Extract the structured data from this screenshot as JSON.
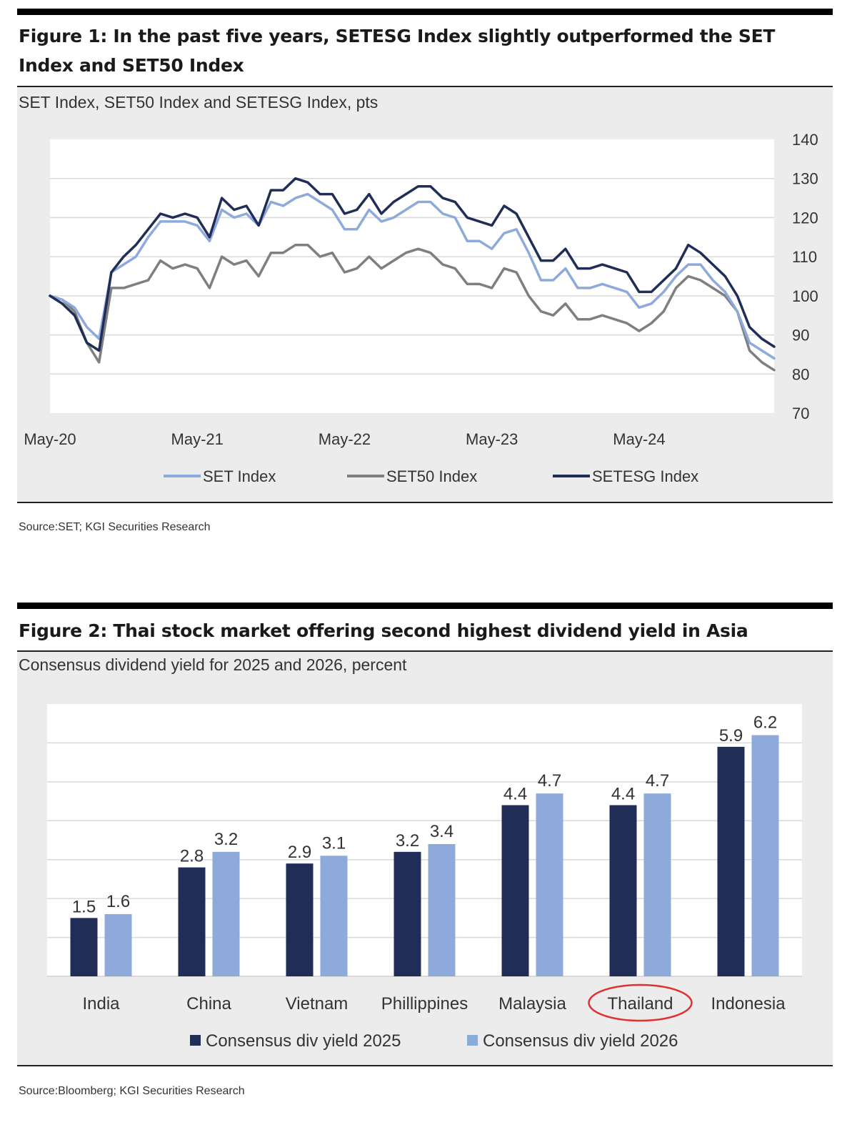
{
  "figure1": {
    "title": "Figure 1: In the past five years, SETESG Index slightly outperformed the SET Index and SET50 Index",
    "subtitle": "SET Index, SET50 Index and SETESG Index, pts",
    "source": "Source:SET; KGI Securities Research"
  },
  "figure2": {
    "title": "Figure 2: Thai stock market offering second highest dividend yield in Asia",
    "subtitle": "Consensus dividend yield for 2025 and 2026, percent",
    "source": "Source:Bloomberg; KGI Securities Research"
  },
  "colors": {
    "set": "#8eaadb",
    "set50": "#7f7f7f",
    "setesg": "#1f2d57",
    "bar2025": "#1f2d57",
    "bar2026": "#8eaadb",
    "highlight": "#e03030"
  },
  "chart_data": [
    {
      "type": "line",
      "title": "SET Index, SET50 Index and SETESG Index, pts",
      "x_tick_labels": [
        "May-20",
        "May-21",
        "May-22",
        "May-23",
        "May-24"
      ],
      "y_ticks": [
        70,
        80,
        90,
        100,
        110,
        120,
        130,
        140
      ],
      "ylim": [
        70,
        140
      ],
      "y_axis_side": "right",
      "grid": true,
      "legend_position": "bottom",
      "x_index_count": 60,
      "series": [
        {
          "name": "SET Index",
          "color": "#8eaadb",
          "values": [
            100,
            99,
            97,
            92,
            89,
            106,
            108,
            110,
            115,
            119,
            119,
            119,
            118,
            114,
            122,
            120,
            121,
            118,
            124,
            123,
            125,
            126,
            124,
            122,
            117,
            117,
            122,
            119,
            120,
            122,
            124,
            124,
            121,
            120,
            114,
            114,
            112,
            116,
            117,
            111,
            104,
            104,
            107,
            102,
            102,
            103,
            102,
            101,
            97,
            98,
            101,
            105,
            108,
            108,
            104,
            101,
            96,
            88,
            86,
            84
          ]
        },
        {
          "name": "SET50 Index",
          "color": "#7f7f7f",
          "values": [
            100,
            99,
            96,
            88,
            83,
            102,
            102,
            103,
            104,
            109,
            107,
            108,
            107,
            102,
            110,
            108,
            109,
            105,
            111,
            111,
            113,
            113,
            110,
            111,
            106,
            107,
            110,
            107,
            109,
            111,
            112,
            111,
            108,
            107,
            103,
            103,
            102,
            107,
            106,
            100,
            96,
            95,
            98,
            94,
            94,
            95,
            94,
            93,
            91,
            93,
            96,
            102,
            105,
            104,
            102,
            100,
            96,
            86,
            83,
            81
          ]
        },
        {
          "name": "SETESG Index",
          "color": "#1f2d57",
          "values": [
            100,
            98,
            95,
            88,
            86,
            106,
            110,
            113,
            117,
            121,
            120,
            121,
            120,
            115,
            125,
            122,
            123,
            118,
            127,
            127,
            130,
            129,
            126,
            126,
            121,
            122,
            126,
            121,
            124,
            126,
            128,
            128,
            125,
            124,
            120,
            119,
            118,
            123,
            121,
            115,
            109,
            109,
            112,
            107,
            107,
            108,
            107,
            106,
            101,
            101,
            104,
            107,
            113,
            111,
            108,
            105,
            100,
            92,
            89,
            87
          ]
        }
      ]
    },
    {
      "type": "bar",
      "title": "Consensus dividend yield for 2025 and 2026, percent",
      "categories": [
        "India",
        "China",
        "Vietnam",
        "Phillippines",
        "Malaysia",
        "Thailand",
        "Indonesia"
      ],
      "highlighted_category": "Thailand",
      "ylim": [
        0,
        7
      ],
      "grid": true,
      "legend_position": "bottom",
      "series": [
        {
          "name": "Consensus div yield 2025",
          "color": "#1f2d57",
          "values": [
            1.5,
            2.8,
            2.9,
            3.2,
            4.4,
            4.4,
            5.9
          ]
        },
        {
          "name": "Consensus div yield 2026",
          "color": "#8eaadb",
          "values": [
            1.6,
            3.2,
            3.1,
            3.4,
            4.7,
            4.7,
            6.2
          ]
        }
      ]
    }
  ]
}
